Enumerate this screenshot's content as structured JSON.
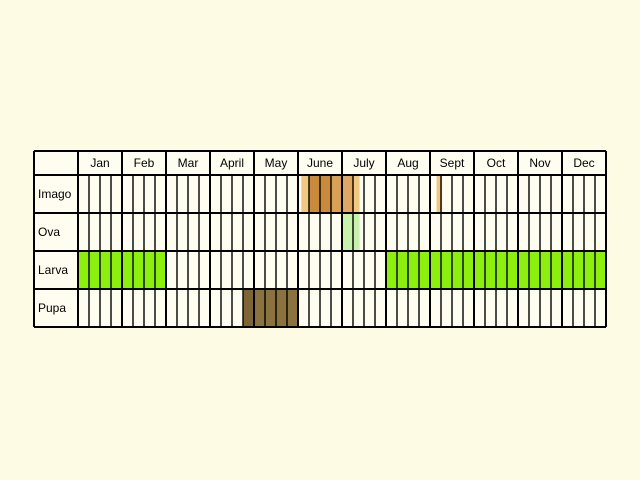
{
  "calendar": {
    "months": [
      "Jan",
      "Feb",
      "Mar",
      "April",
      "May",
      "June",
      "July",
      "Aug",
      "Sept",
      "Oct",
      "Nov",
      "Dec"
    ],
    "rows": [
      {
        "label": "Imago",
        "periods": [
          {
            "start_week": 20.3,
            "end_week": 21.0,
            "color": "#f2c880"
          },
          {
            "start_week": 21.0,
            "end_week": 23.0,
            "color": "#c98a3c"
          },
          {
            "start_week": 23.0,
            "end_week": 24.0,
            "color": "#d9a155"
          },
          {
            "start_week": 24.0,
            "end_week": 25.0,
            "color": "#dea863"
          },
          {
            "start_week": 25.0,
            "end_week": 25.6,
            "color": "#f2c880"
          },
          {
            "start_week": 32.6,
            "end_week": 33.1,
            "color": "#f2c880"
          }
        ]
      },
      {
        "label": "Ova",
        "periods": [
          {
            "start_week": 24.0,
            "end_week": 25.6,
            "color": "#c8f1ab"
          }
        ]
      },
      {
        "label": "Larva",
        "periods": [
          {
            "start_week": 0.0,
            "end_week": 8.0,
            "color": "#8def0e"
          },
          {
            "start_week": 28.0,
            "end_week": 48.0,
            "color": "#8def0e"
          }
        ]
      },
      {
        "label": "Pupa",
        "periods": [
          {
            "start_week": 15.0,
            "end_week": 16.0,
            "color": "#7f6536"
          },
          {
            "start_week": 16.0,
            "end_week": 20.0,
            "color": "#8b7340"
          }
        ]
      }
    ],
    "colors": {
      "background": "#fdfbe3",
      "cell": "#fffdf0",
      "border": "#000000"
    }
  }
}
